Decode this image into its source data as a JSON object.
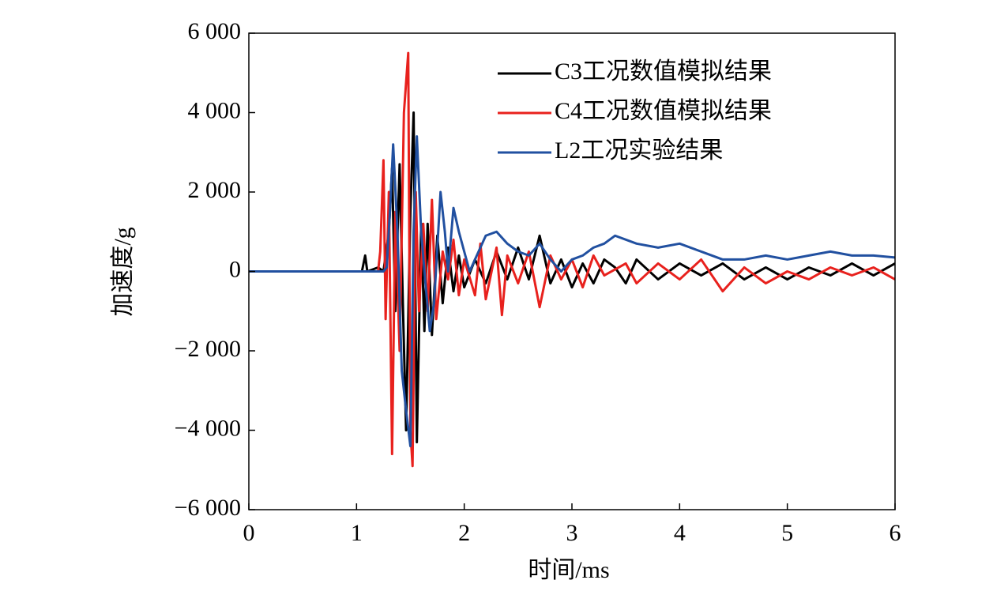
{
  "chart_data": {
    "type": "line",
    "x_label": "时间/ms",
    "y_label": "加速度/g",
    "xlim": [
      0,
      6
    ],
    "xticks": [
      0,
      1,
      2,
      3,
      4,
      5,
      6
    ],
    "ylim": [
      -6000,
      6000
    ],
    "yticks": [
      {
        "value": -6000,
        "label": "−6 000"
      },
      {
        "value": -4000,
        "label": "−4 000"
      },
      {
        "value": -2000,
        "label": "−2 000"
      },
      0,
      {
        "value": 2000,
        "label": "2 000"
      },
      {
        "value": 4000,
        "label": "4 000"
      },
      {
        "value": 6000,
        "label": "6 000"
      }
    ],
    "legend": "upper right",
    "series": [
      {
        "name": "C3工况数值模拟结果",
        "color": "#000000",
        "x": [
          0,
          1.05,
          1.08,
          1.1,
          1.2,
          1.25,
          1.3,
          1.33,
          1.36,
          1.4,
          1.43,
          1.46,
          1.5,
          1.53,
          1.56,
          1.6,
          1.63,
          1.66,
          1.7,
          1.75,
          1.8,
          1.85,
          1.9,
          1.95,
          2.0,
          2.1,
          2.2,
          2.3,
          2.4,
          2.5,
          2.6,
          2.7,
          2.8,
          2.9,
          3.0,
          3.1,
          3.2,
          3.3,
          3.4,
          3.5,
          3.6,
          3.8,
          4.0,
          4.2,
          4.4,
          4.6,
          4.8,
          5.0,
          5.2,
          5.4,
          5.6,
          5.8,
          6.0
        ],
        "values": [
          0,
          0,
          400,
          0,
          100,
          0,
          1000,
          2600,
          -1000,
          2700,
          -800,
          -4000,
          1500,
          4000,
          -4300,
          1200,
          -1500,
          1200,
          -1600,
          900,
          -800,
          600,
          -500,
          400,
          -400,
          300,
          -300,
          500,
          -200,
          600,
          -200,
          900,
          -300,
          300,
          -400,
          200,
          -300,
          300,
          100,
          -300,
          300,
          -200,
          200,
          -100,
          200,
          -200,
          100,
          -200,
          100,
          -100,
          200,
          -100,
          200
        ]
      },
      {
        "name": "C4工况数值模拟结果",
        "color": "#e8211d",
        "x": [
          0,
          1.2,
          1.22,
          1.25,
          1.27,
          1.3,
          1.33,
          1.36,
          1.4,
          1.44,
          1.48,
          1.5,
          1.52,
          1.55,
          1.58,
          1.62,
          1.66,
          1.7,
          1.74,
          1.8,
          1.85,
          1.9,
          1.95,
          2.0,
          2.1,
          2.15,
          2.2,
          2.3,
          2.35,
          2.4,
          2.5,
          2.6,
          2.7,
          2.8,
          2.9,
          3.0,
          3.1,
          3.2,
          3.3,
          3.5,
          3.6,
          3.8,
          4.0,
          4.2,
          4.4,
          4.6,
          4.8,
          5.0,
          5.2,
          5.4,
          5.6,
          5.8,
          6.0
        ],
        "values": [
          0,
          0,
          500,
          2800,
          -1200,
          2000,
          -4600,
          1500,
          -2000,
          4000,
          5500,
          -4000,
          -4900,
          2000,
          -1000,
          1200,
          -1000,
          1800,
          -1200,
          500,
          -200,
          800,
          -600,
          300,
          -600,
          700,
          -700,
          600,
          -1100,
          400,
          -300,
          500,
          -900,
          400,
          -200,
          300,
          -400,
          400,
          -100,
          200,
          -300,
          200,
          -200,
          300,
          -500,
          100,
          -300,
          0,
          -200,
          100,
          -100,
          100,
          -200
        ]
      },
      {
        "name": "L2工况实验结果",
        "color": "#2150a0",
        "x": [
          0,
          1.25,
          1.28,
          1.31,
          1.34,
          1.38,
          1.42,
          1.46,
          1.5,
          1.53,
          1.56,
          1.6,
          1.64,
          1.68,
          1.72,
          1.78,
          1.82,
          1.85,
          1.9,
          1.95,
          2.0,
          2.05,
          2.1,
          2.2,
          2.3,
          2.4,
          2.5,
          2.6,
          2.7,
          2.8,
          2.9,
          3.0,
          3.1,
          3.2,
          3.3,
          3.4,
          3.6,
          3.8,
          4.0,
          4.2,
          4.4,
          4.6,
          4.8,
          5.0,
          5.2,
          5.4,
          5.6,
          5.8,
          6.0
        ],
        "values": [
          0,
          0,
          100,
          1500,
          3200,
          1000,
          -2500,
          -3500,
          -4400,
          1000,
          3400,
          1000,
          -300,
          -1500,
          -800,
          2000,
          1000,
          0,
          1600,
          1000,
          500,
          0,
          300,
          900,
          1000,
          700,
          500,
          400,
          700,
          300,
          0,
          300,
          400,
          600,
          700,
          900,
          700,
          600,
          700,
          500,
          300,
          300,
          400,
          300,
          400,
          500,
          400,
          400,
          350
        ]
      }
    ]
  }
}
